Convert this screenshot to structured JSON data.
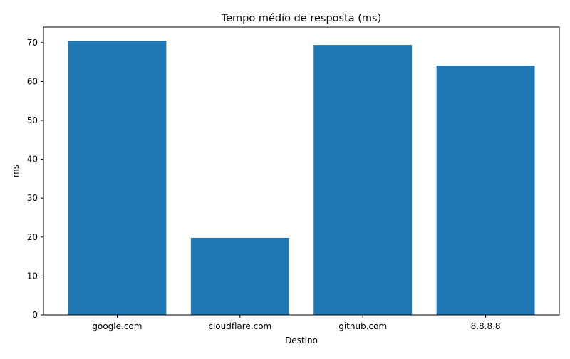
{
  "chart_data": {
    "type": "bar",
    "title": "Tempo médio de resposta (ms)",
    "xlabel": "Destino",
    "ylabel": "ms",
    "categories": [
      "google.com",
      "cloudflare.com",
      "github.com",
      "8.8.8.8"
    ],
    "values": [
      70.5,
      19.8,
      69.4,
      64.1
    ],
    "ylim": [
      0,
      74
    ],
    "yticks": [
      0,
      10,
      20,
      30,
      40,
      50,
      60,
      70
    ],
    "bar_color": "#1f77b4",
    "grid": false,
    "legend": "none"
  }
}
